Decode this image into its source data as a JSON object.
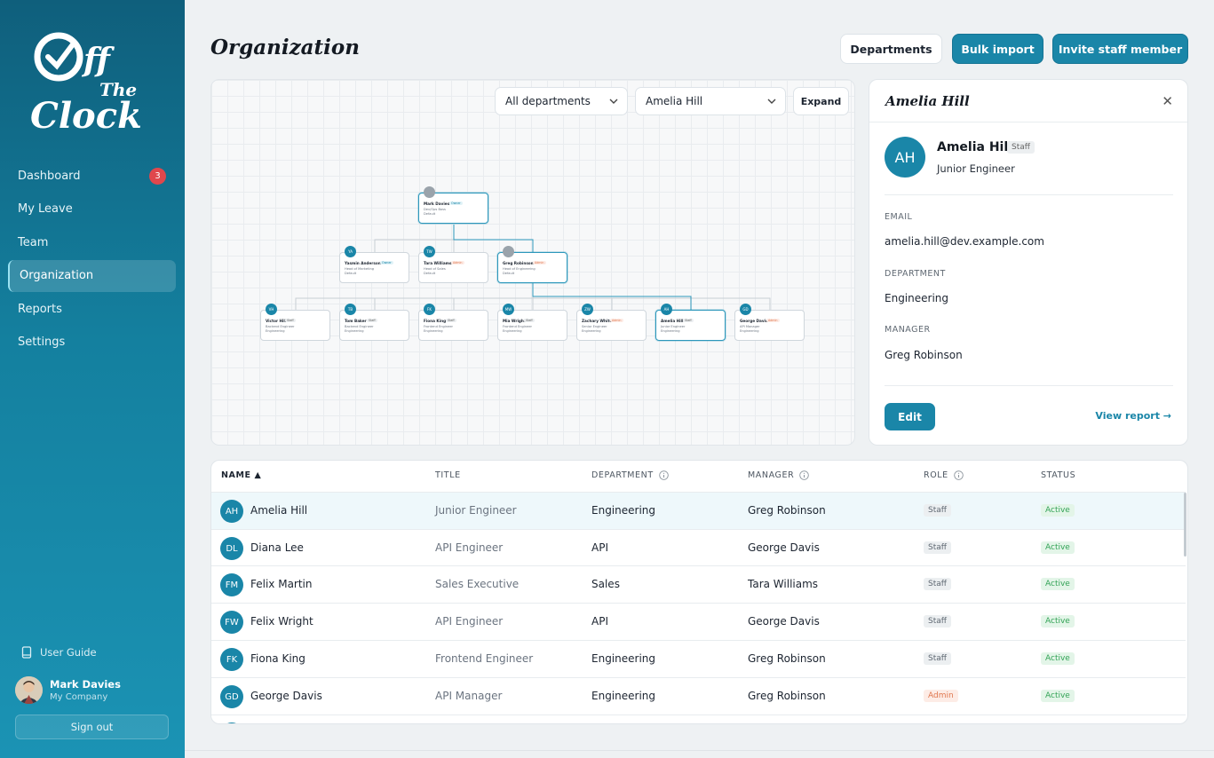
{
  "app": {
    "logo_text": "Off The Clock"
  },
  "sidebar": {
    "items": [
      {
        "label": "Dashboard",
        "badge": "3"
      },
      {
        "label": "My Leave"
      },
      {
        "label": "Team"
      },
      {
        "label": "Organization"
      },
      {
        "label": "Reports"
      },
      {
        "label": "Settings"
      }
    ],
    "guide_label": "User Guide",
    "user": {
      "name": "Mark Davies",
      "company": "My Company"
    },
    "signout_label": "Sign out"
  },
  "header": {
    "title": "Organization",
    "departments_label": "Departments",
    "bulk_import_label": "Bulk import",
    "invite_label": "Invite staff member"
  },
  "chart_panel": {
    "department_filter": "All departments",
    "person_filter": "Amelia Hill",
    "expand_label": "Expand",
    "nodes": [
      {
        "initials": "",
        "name": "Mark Davies",
        "role": "Owner",
        "title": "Dev/Ops Boss",
        "dept": "Default"
      },
      {
        "initials": "YA",
        "name": "Yasmin Anderson",
        "role": "Owner",
        "title": "Head of Marketing",
        "dept": "Default"
      },
      {
        "initials": "TW",
        "name": "Tara Williams",
        "role": "Admin",
        "title": "Head of Sales",
        "dept": "Default"
      },
      {
        "initials": "",
        "name": "Greg Robinson",
        "role": "Admin",
        "title": "Head of Engineering",
        "dept": "Default"
      },
      {
        "initials": "VH",
        "name": "Victor Hill",
        "role": "Staff",
        "title": "Backend Engineer",
        "dept": "Engineering"
      },
      {
        "initials": "TB",
        "name": "Tom Baker",
        "role": "Staff",
        "title": "Backend Engineer",
        "dept": "Engineering"
      },
      {
        "initials": "FK",
        "name": "Fiona King",
        "role": "Staff",
        "title": "Frontend Engineer",
        "dept": "Engineering"
      },
      {
        "initials": "MW",
        "name": "Mia Wright",
        "role": "Staff",
        "title": "Frontend Engineer",
        "dept": "Engineering"
      },
      {
        "initials": "ZW",
        "name": "Zachary White",
        "role": "Admin",
        "title": "Senior Engineer",
        "dept": "Engineering"
      },
      {
        "initials": "AH",
        "name": "Amelia Hill",
        "role": "Staff",
        "title": "Junior Engineer",
        "dept": "Engineering"
      },
      {
        "initials": "GD",
        "name": "George Davis",
        "role": "Admin",
        "title": "API Manager",
        "dept": "Engineering"
      }
    ]
  },
  "detail": {
    "title": "Amelia Hill",
    "initials": "AH",
    "name": "Amelia Hill",
    "role": "Staff",
    "job_title": "Junior Engineer",
    "email_label": "EMAIL",
    "email": "amelia.hill@dev.example.com",
    "department_label": "DEPARTMENT",
    "department": "Engineering",
    "manager_label": "MANAGER",
    "manager": "Greg Robinson",
    "edit_label": "Edit",
    "view_report_label": "View report →"
  },
  "table": {
    "headers": {
      "name": "NAME ▲",
      "title": "TITLE",
      "department": "DEPARTMENT",
      "manager": "MANAGER",
      "role": "ROLE",
      "status": "STATUS"
    },
    "rows": [
      {
        "initials": "AH",
        "name": "Amelia Hill",
        "title": "Junior Engineer",
        "department": "Engineering",
        "manager": "Greg Robinson",
        "role": "Staff",
        "status": "Active"
      },
      {
        "initials": "DL",
        "name": "Diana Lee",
        "title": "API Engineer",
        "department": "API",
        "manager": "George Davis",
        "role": "Staff",
        "status": "Active"
      },
      {
        "initials": "FM",
        "name": "Felix Martin",
        "title": "Sales Executive",
        "department": "Sales",
        "manager": "Tara Williams",
        "role": "Staff",
        "status": "Active"
      },
      {
        "initials": "FW",
        "name": "Felix Wright",
        "title": "API Engineer",
        "department": "API",
        "manager": "George Davis",
        "role": "Staff",
        "status": "Active"
      },
      {
        "initials": "FK",
        "name": "Fiona King",
        "title": "Frontend Engineer",
        "department": "Engineering",
        "manager": "Greg Robinson",
        "role": "Staff",
        "status": "Active"
      },
      {
        "initials": "GD",
        "name": "George Davis",
        "title": "API Manager",
        "department": "Engineering",
        "manager": "Greg Robinson",
        "role": "Admin",
        "status": "Active"
      }
    ]
  }
}
